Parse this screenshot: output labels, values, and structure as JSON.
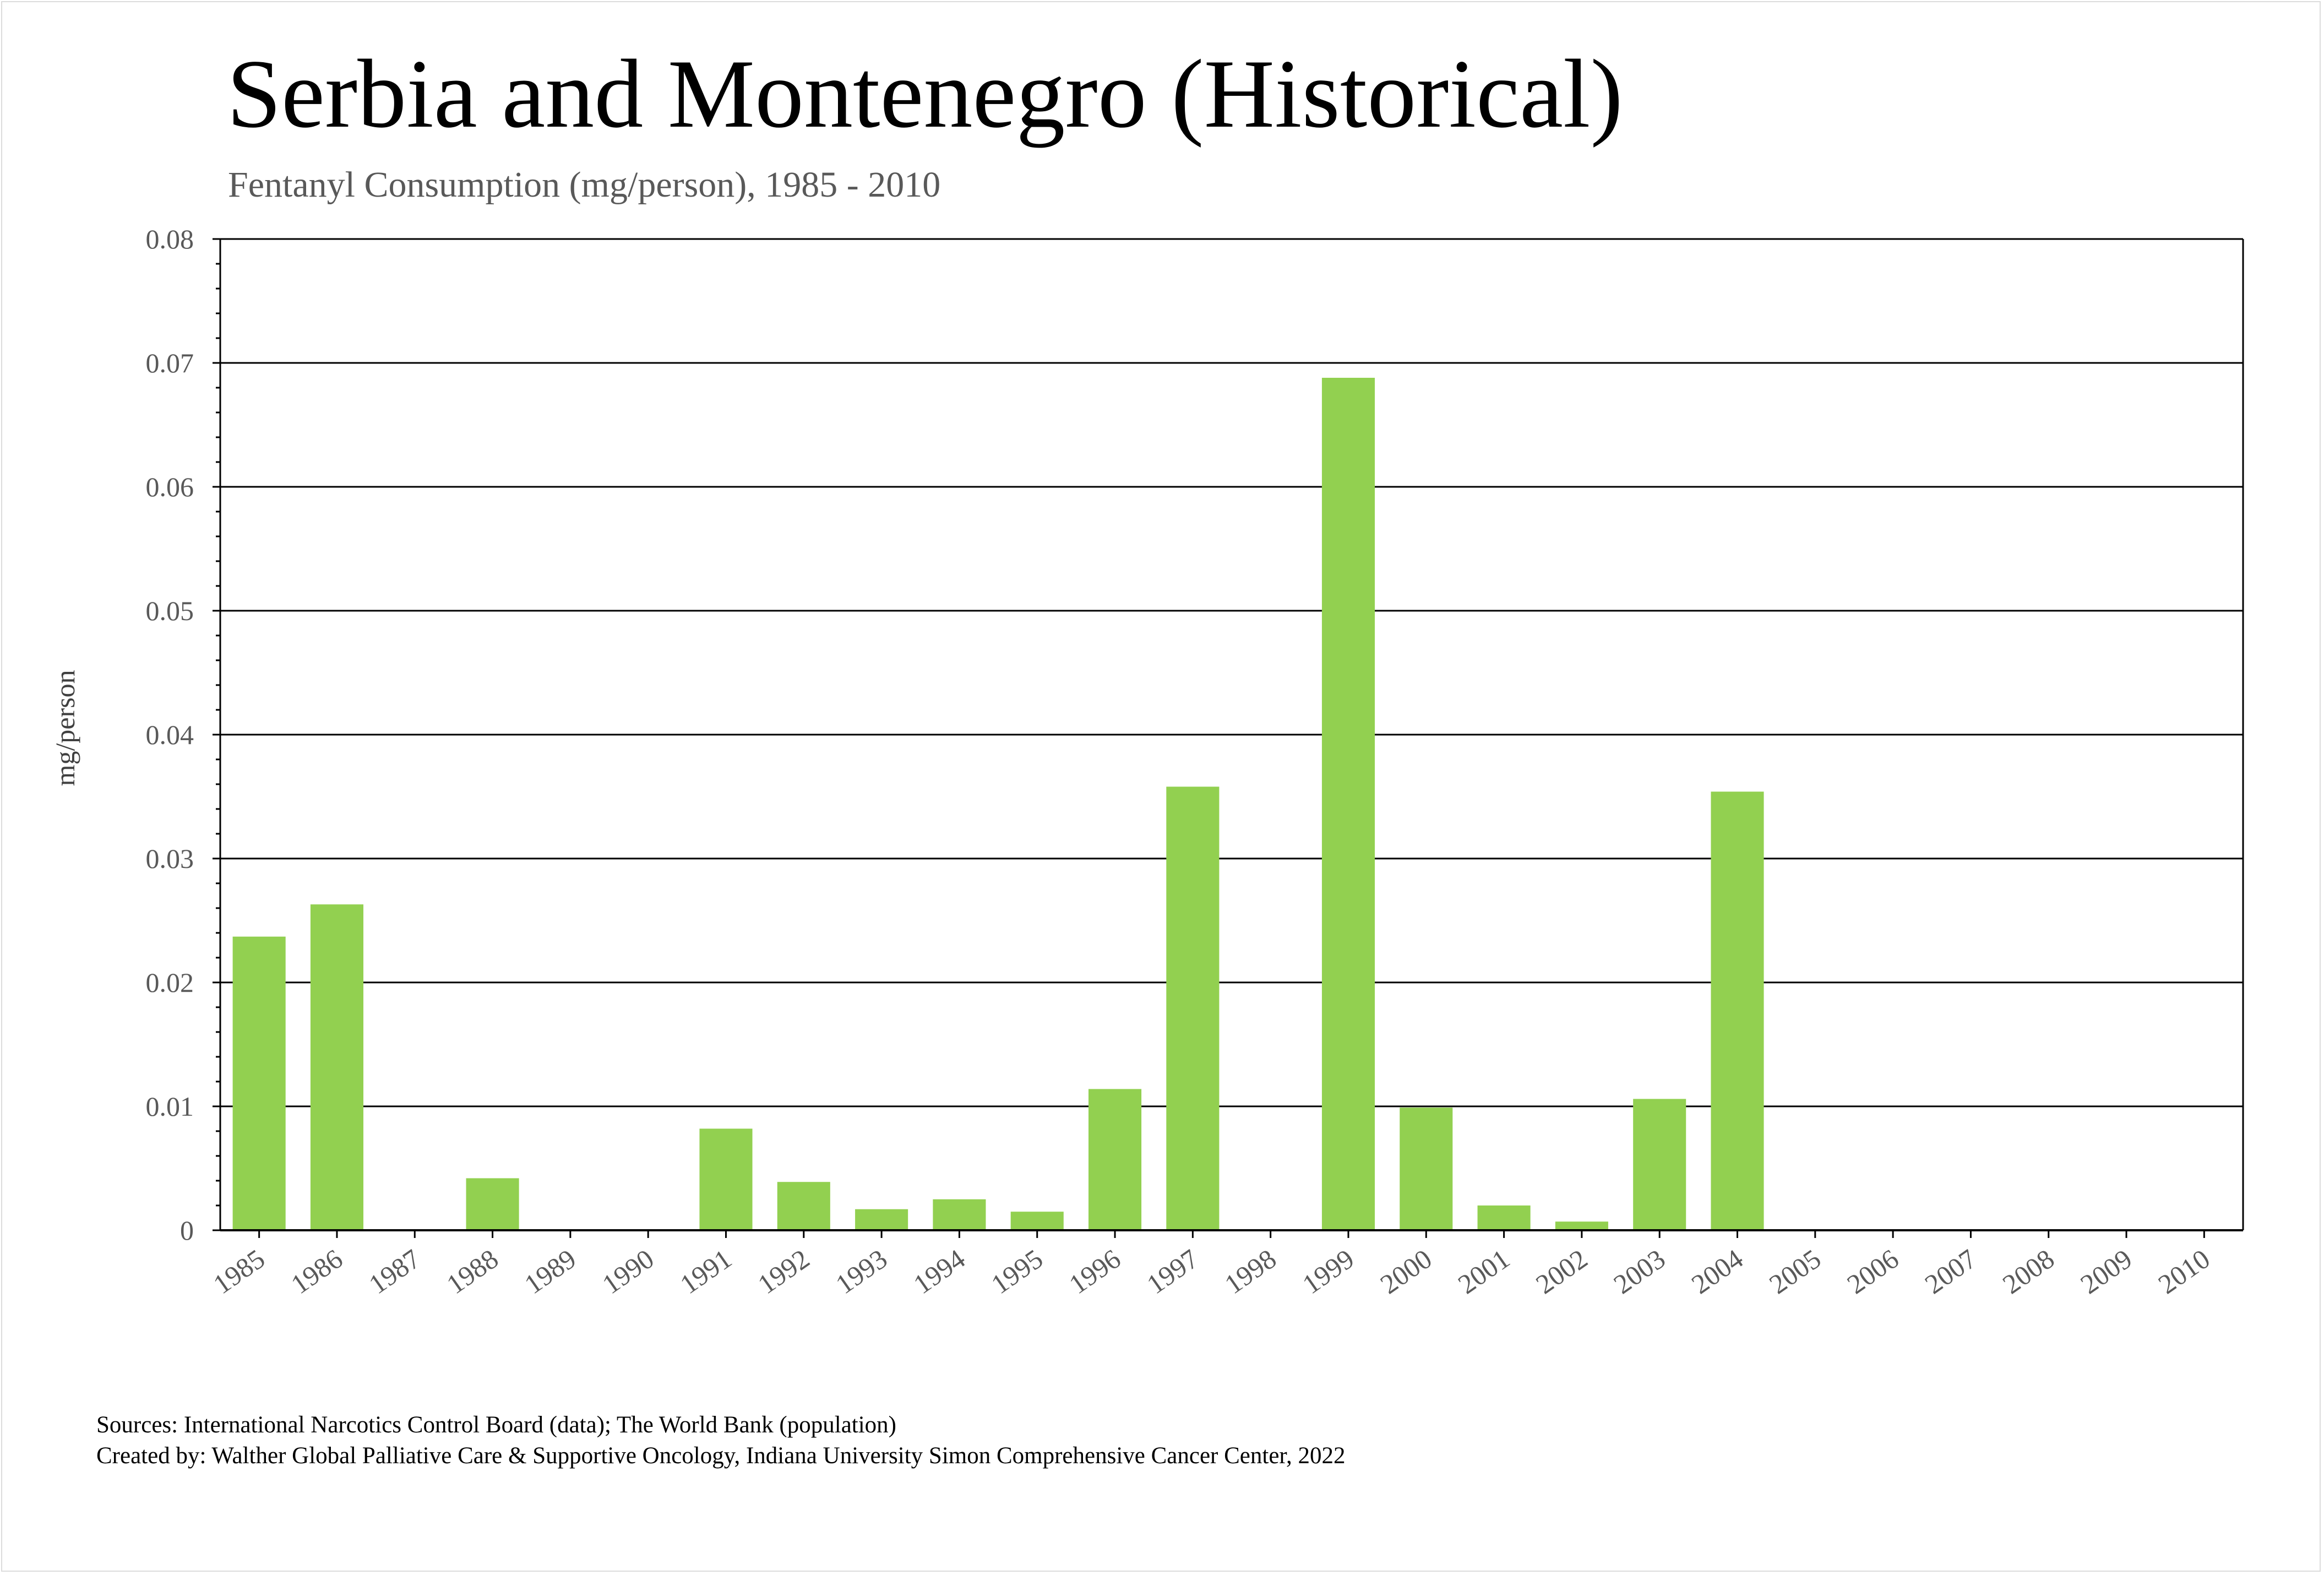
{
  "header": {
    "title": "Serbia and Montenegro (Historical)",
    "subtitle": "Fentanyl Consumption (mg/person), 1985 - 2010"
  },
  "footer": {
    "sources": "Sources: International Narcotics Control Board (data); The World Bank (population)",
    "created_by": "Created by: Walther Global Palliative Care & Supportive Oncology, Indiana University Simon Comprehensive Cancer Center, 2022"
  },
  "colors": {
    "bar": "#92d050",
    "grid": "#000000",
    "text": "#595959"
  },
  "chart_data": {
    "type": "bar",
    "title": "Serbia and Montenegro (Historical)",
    "subtitle": "Fentanyl Consumption (mg/person), 1985 - 2010",
    "xlabel": "",
    "ylabel": "mg/person",
    "ylim": [
      0,
      0.08
    ],
    "yticks": [
      "0",
      "0.01",
      "0.02",
      "0.03",
      "0.04",
      "0.05",
      "0.06",
      "0.07",
      "0.08"
    ],
    "grid": true,
    "legend": "none",
    "categories": [
      "1985",
      "1986",
      "1987",
      "1988",
      "1989",
      "1990",
      "1991",
      "1992",
      "1993",
      "1994",
      "1995",
      "1996",
      "1997",
      "1998",
      "1999",
      "2000",
      "2001",
      "2002",
      "2003",
      "2004",
      "2005",
      "2006",
      "2007",
      "2008",
      "2009",
      "2010"
    ],
    "values": [
      0.0237,
      0.0263,
      0,
      0.0042,
      0,
      0,
      0.0082,
      0.0039,
      0.0017,
      0.0025,
      0.0015,
      0.0114,
      0.0358,
      0,
      0.0688,
      0.0099,
      0.002,
      0.0007,
      0.0106,
      0.0354,
      0,
      0,
      0,
      0,
      0,
      0
    ]
  }
}
